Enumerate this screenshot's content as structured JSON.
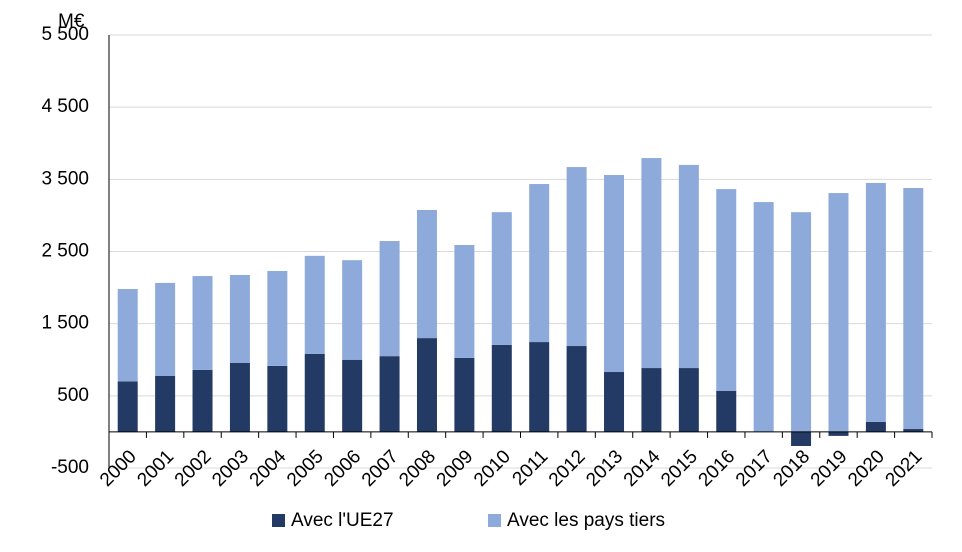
{
  "chart_data": {
    "type": "stacked-bar",
    "unit_label": "M€",
    "categories": [
      "2000",
      "2001",
      "2002",
      "2003",
      "2004",
      "2005",
      "2006",
      "2007",
      "2008",
      "2009",
      "2010",
      "2011",
      "2012",
      "2013",
      "2014",
      "2015",
      "2016",
      "2017",
      "2018",
      "2019",
      "2020",
      "2021"
    ],
    "series": [
      {
        "name": "Avec l'UE27",
        "color": "#233a64",
        "values": [
          700,
          775,
          860,
          955,
          915,
          1080,
          1000,
          1050,
          1300,
          1025,
          1205,
          1245,
          1190,
          830,
          885,
          885,
          570,
          0,
          -195,
          -55,
          140,
          40
        ]
      },
      {
        "name": "Avec les pays tiers",
        "color": "#8eaadb",
        "values": [
          1280,
          1290,
          1300,
          1220,
          1315,
          1360,
          1380,
          1595,
          1775,
          1565,
          1840,
          2190,
          2480,
          2730,
          2910,
          2815,
          2795,
          3185,
          3045,
          3310,
          3310,
          3340
        ]
      }
    ],
    "ylim": [
      -500,
      5500
    ],
    "yticks": [
      -500,
      500,
      {
        "value": 1500,
        "label": "1 500"
      },
      {
        "value": 2500,
        "label": "2 500"
      },
      {
        "value": 3500,
        "label": "3 500"
      },
      {
        "value": 4500,
        "label": "4 500"
      },
      {
        "value": 5500,
        "label": "5 500"
      }
    ],
    "grid": true
  }
}
